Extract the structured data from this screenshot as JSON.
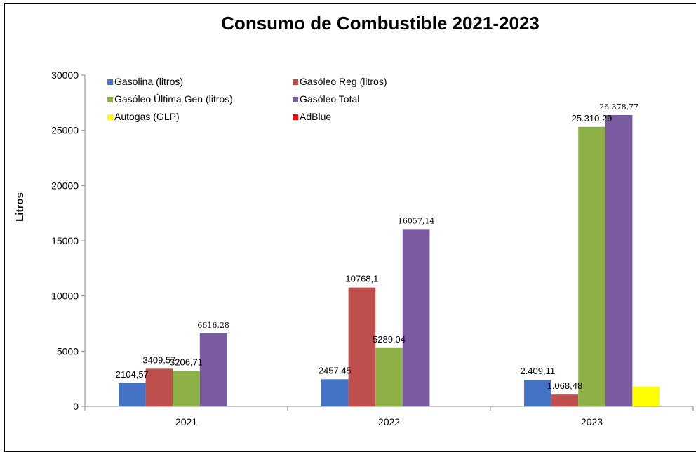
{
  "chart_data": {
    "type": "bar",
    "title": "Consumo de Combustible 2021-2023",
    "xlabel": "",
    "ylabel": "Litros",
    "ylim": [
      0,
      30000
    ],
    "yticks": [
      "0",
      "5000",
      "10000",
      "15000",
      "20000",
      "25000",
      "30000"
    ],
    "categories": [
      "2021",
      "2022",
      "2023"
    ],
    "legend_position": "top-left",
    "grid": false,
    "series": [
      {
        "name": "Gasolina (litros)",
        "color": "#4472C4",
        "values": [
          2104.57,
          2457.45,
          2409.11
        ],
        "labels": [
          "2104,57",
          "2457,45",
          "2.409,11"
        ]
      },
      {
        "name": "Gasóleo Reg (litros)",
        "color": "#C0504D",
        "values": [
          3409.57,
          10768.1,
          1068.48
        ],
        "labels": [
          "3409,57",
          "10768,1",
          "1.068,48"
        ]
      },
      {
        "name": "Gasóleo Última Gen (litros)",
        "color": "#8DB047",
        "values": [
          3206.71,
          5289.04,
          25310.29
        ],
        "labels": [
          "3206,71",
          "5289,04",
          "25.310,29"
        ]
      },
      {
        "name": "Gasóleo Total",
        "color": "#7A5BA1",
        "values": [
          6616.28,
          16057.14,
          26378.77
        ],
        "labels": [
          "6616,28",
          "16057,14",
          "26.378,77"
        ]
      },
      {
        "name": "Autogas (GLP)",
        "color": "#FFFF00",
        "values": [
          null,
          null,
          1800
        ],
        "labels": [
          "",
          "",
          ""
        ]
      },
      {
        "name": "AdBlue",
        "color": "#FF0000",
        "values": [
          null,
          null,
          null
        ],
        "labels": [
          "",
          "",
          ""
        ]
      }
    ]
  }
}
